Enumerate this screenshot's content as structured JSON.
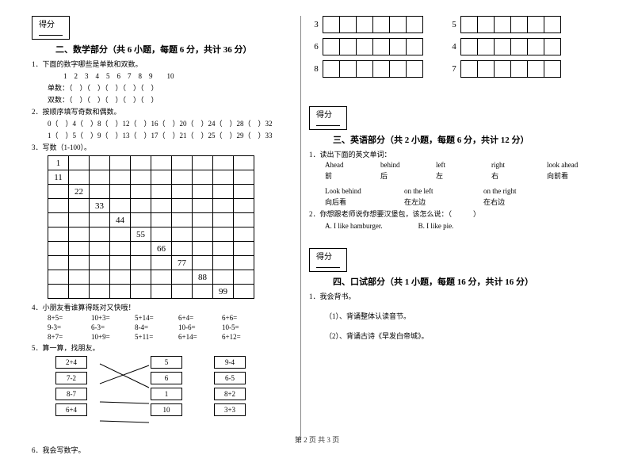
{
  "footer": "第 2 页 共 3 页",
  "score_label": "得分",
  "sections": {
    "math": {
      "title": "二、数学部分（共 6 小题，每题 6 分，共计 36 分）",
      "q1": "1．下面的数字哪些是单数和双数。",
      "q1_seq": "1　2　3　4　5　6　7　8　9　　10",
      "q1_odd": "单数：（　）（　）（　）（　）（　）",
      "q1_even": "双数：（　）（　）（　）（　）（　）",
      "q2": "2．按顺序填写奇数和偶数。",
      "q2_row1": "0（　）4（　）8（　）12（　）16（　）20（　）24（　）28（　）32",
      "q2_row2": "1（　）5（　）9（　）13（　）17（　）21（　）25（　）29（　）33",
      "q3": "3．写数（1-100）。",
      "grid_diag": [
        "1",
        "11",
        "22",
        "33",
        "44",
        "55",
        "66",
        "77",
        "88",
        "99"
      ],
      "q4": "4．小朋友看谁算得既对又快哦！",
      "q4_rows": [
        [
          "8+5=",
          "10+3=",
          "5+14=",
          "6+4=",
          "6+6="
        ],
        [
          "9-3=",
          "6-3=",
          "8-4=",
          "10-6=",
          "10-5="
        ],
        [
          "8+7=",
          "10+9=",
          "5+11=",
          "6+14=",
          "6+12="
        ]
      ],
      "q5": "5．算一算，找朋友。",
      "q5_colA": [
        "2+4",
        "7-2",
        "8-7",
        "6+4"
      ],
      "q5_colB": [
        "5",
        "6",
        "1",
        "10"
      ],
      "q5_colC": [
        "9-4",
        "6-5",
        "8+2",
        "3+3"
      ],
      "q6": "6．我会写数字。",
      "write_labels_left": [
        "3",
        "6",
        "8"
      ],
      "write_labels_right": [
        "5",
        "4",
        "7"
      ],
      "write_cell_count": 6
    },
    "english": {
      "title": "三、英语部分（共 2 小题，每题 6 分，共计 12 分）",
      "q1": "1．读出下面的英文单词：",
      "row1_en": [
        "Ahead",
        "behind",
        "left",
        "right",
        "look ahead"
      ],
      "row1_cn": [
        "前",
        "后",
        "左",
        "右",
        "向前看"
      ],
      "row2_en": [
        "Look behind",
        "on the left",
        "on the right"
      ],
      "row2_cn": [
        "向后看",
        "在左边",
        "在右边"
      ],
      "q2": "2．你想跟老师说你想要汉堡包，该怎么说：（　　　）",
      "q2_opts": "A. I like hamburger.　　　　　B. I like pie."
    },
    "oral": {
      "title": "四、口试部分（共 1 小题，每题 16 分，共计 16 分）",
      "q1": "1．我会背书。",
      "sub1": "（1）、背诵整体认读音节。",
      "sub2": "（2）、背诵古诗《早发白帝城》。"
    }
  }
}
